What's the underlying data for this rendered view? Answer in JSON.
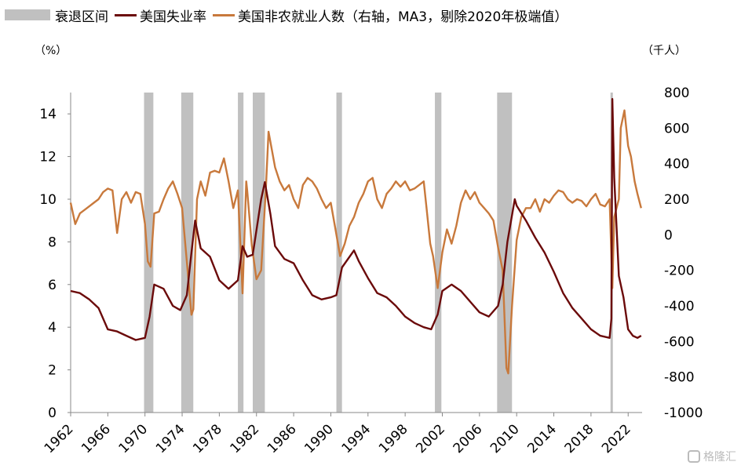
{
  "legend": {
    "recession": "衰退区间",
    "unemployment": "美国失业率",
    "payrolls": "美国非农就业人数（右轴，MA3，剔除2020年极端值）"
  },
  "units": {
    "left": "（%）",
    "right": "（千人）"
  },
  "watermark": "格隆汇",
  "colors": {
    "recession": "#c0c0c0",
    "unemployment": "#6b0a0a",
    "payrolls": "#c8793c"
  },
  "chart_data": {
    "type": "line",
    "x_range": [
      1962,
      2023.5
    ],
    "x_ticks": [
      "1962",
      "1966",
      "1970",
      "1974",
      "1978",
      "1982",
      "1986",
      "1990",
      "1994",
      "1998",
      "2002",
      "2006",
      "2010",
      "2014",
      "2018",
      "2022"
    ],
    "y_left": {
      "range": [
        0,
        15
      ],
      "ticks": [
        0,
        2,
        4,
        6,
        8,
        10,
        12,
        14
      ]
    },
    "y_right": {
      "range": [
        -1000,
        800
      ],
      "ticks": [
        -1000,
        -800,
        -600,
        -400,
        -200,
        0,
        200,
        400,
        600,
        800
      ]
    },
    "recessions": [
      [
        1969.9,
        1970.9
      ],
      [
        1973.9,
        1975.2
      ],
      [
        1980.0,
        1980.6
      ],
      [
        1981.6,
        1982.9
      ],
      [
        1990.6,
        1991.2
      ],
      [
        2001.2,
        2001.9
      ],
      [
        2007.9,
        2009.5
      ],
      [
        2020.1,
        2020.3
      ]
    ],
    "series": [
      {
        "name": "美国失业率",
        "axis": "left",
        "points": [
          [
            1962,
            5.7
          ],
          [
            1963,
            5.6
          ],
          [
            1964,
            5.3
          ],
          [
            1965,
            4.9
          ],
          [
            1966,
            3.9
          ],
          [
            1967,
            3.8
          ],
          [
            1968,
            3.6
          ],
          [
            1969,
            3.4
          ],
          [
            1970,
            3.5
          ],
          [
            1970.5,
            4.5
          ],
          [
            1971,
            6.0
          ],
          [
            1972,
            5.8
          ],
          [
            1973,
            5.0
          ],
          [
            1973.8,
            4.8
          ],
          [
            1974.5,
            5.5
          ],
          [
            1975,
            7.5
          ],
          [
            1975.4,
            9.0
          ],
          [
            1976,
            7.7
          ],
          [
            1977,
            7.3
          ],
          [
            1978,
            6.2
          ],
          [
            1979,
            5.8
          ],
          [
            1980,
            6.2
          ],
          [
            1980.5,
            7.8
          ],
          [
            1981,
            7.3
          ],
          [
            1981.6,
            7.4
          ],
          [
            1982.5,
            10.0
          ],
          [
            1982.9,
            10.8
          ],
          [
            1983.5,
            9.3
          ],
          [
            1984,
            7.8
          ],
          [
            1985,
            7.2
          ],
          [
            1986,
            7.0
          ],
          [
            1987,
            6.2
          ],
          [
            1988,
            5.5
          ],
          [
            1989,
            5.3
          ],
          [
            1990,
            5.4
          ],
          [
            1990.6,
            5.5
          ],
          [
            1991.2,
            6.8
          ],
          [
            1992.5,
            7.6
          ],
          [
            1993,
            7.1
          ],
          [
            1994,
            6.3
          ],
          [
            1995,
            5.6
          ],
          [
            1996,
            5.4
          ],
          [
            1997,
            5.0
          ],
          [
            1998,
            4.5
          ],
          [
            1999,
            4.2
          ],
          [
            2000,
            4.0
          ],
          [
            2000.8,
            3.9
          ],
          [
            2001.5,
            4.6
          ],
          [
            2002,
            5.7
          ],
          [
            2003,
            6.0
          ],
          [
            2004,
            5.7
          ],
          [
            2005,
            5.2
          ],
          [
            2006,
            4.7
          ],
          [
            2007,
            4.5
          ],
          [
            2008,
            5.0
          ],
          [
            2008.5,
            6.0
          ],
          [
            2009,
            8.0
          ],
          [
            2009.8,
            10.0
          ],
          [
            2010,
            9.7
          ],
          [
            2011,
            9.0
          ],
          [
            2012,
            8.2
          ],
          [
            2013,
            7.5
          ],
          [
            2014,
            6.6
          ],
          [
            2015,
            5.6
          ],
          [
            2016,
            4.9
          ],
          [
            2017,
            4.4
          ],
          [
            2018,
            3.9
          ],
          [
            2019,
            3.6
          ],
          [
            2020,
            3.5
          ],
          [
            2020.2,
            4.4
          ],
          [
            2020.3,
            14.7
          ],
          [
            2020.5,
            11.0
          ],
          [
            2021,
            6.4
          ],
          [
            2021.5,
            5.4
          ],
          [
            2022,
            3.9
          ],
          [
            2022.5,
            3.6
          ],
          [
            2023,
            3.5
          ],
          [
            2023.4,
            3.6
          ]
        ]
      },
      {
        "name": "美国非农就业人数（右轴，MA3，剔除2020年极端值）",
        "axis": "right",
        "points": [
          [
            1962,
            180
          ],
          [
            1962.5,
            60
          ],
          [
            1963,
            120
          ],
          [
            1963.5,
            140
          ],
          [
            1964,
            160
          ],
          [
            1964.5,
            180
          ],
          [
            1965,
            200
          ],
          [
            1965.5,
            240
          ],
          [
            1966,
            260
          ],
          [
            1966.5,
            250
          ],
          [
            1967,
            10
          ],
          [
            1967.5,
            200
          ],
          [
            1968,
            240
          ],
          [
            1968.5,
            180
          ],
          [
            1969,
            240
          ],
          [
            1969.5,
            230
          ],
          [
            1970,
            60
          ],
          [
            1970.3,
            -150
          ],
          [
            1970.6,
            -180
          ],
          [
            1971,
            120
          ],
          [
            1971.5,
            130
          ],
          [
            1972,
            200
          ],
          [
            1972.5,
            260
          ],
          [
            1973,
            300
          ],
          [
            1973.5,
            230
          ],
          [
            1974,
            150
          ],
          [
            1974.5,
            -150
          ],
          [
            1975,
            -450
          ],
          [
            1975.2,
            -420
          ],
          [
            1975.6,
            200
          ],
          [
            1976,
            300
          ],
          [
            1976.5,
            220
          ],
          [
            1977,
            350
          ],
          [
            1977.5,
            360
          ],
          [
            1978,
            350
          ],
          [
            1978.5,
            430
          ],
          [
            1979,
            300
          ],
          [
            1979.5,
            150
          ],
          [
            1980,
            250
          ],
          [
            1980.5,
            -330
          ],
          [
            1980.9,
            300
          ],
          [
            1981,
            250
          ],
          [
            1981.5,
            -60
          ],
          [
            1982,
            -250
          ],
          [
            1982.5,
            -200
          ],
          [
            1983,
            250
          ],
          [
            1983.3,
            580
          ],
          [
            1984,
            380
          ],
          [
            1984.5,
            300
          ],
          [
            1985,
            250
          ],
          [
            1985.5,
            280
          ],
          [
            1986,
            200
          ],
          [
            1986.5,
            150
          ],
          [
            1987,
            280
          ],
          [
            1987.5,
            320
          ],
          [
            1988,
            300
          ],
          [
            1988.5,
            260
          ],
          [
            1989,
            200
          ],
          [
            1989.5,
            150
          ],
          [
            1990,
            180
          ],
          [
            1990.5,
            30
          ],
          [
            1991,
            -120
          ],
          [
            1991.5,
            -50
          ],
          [
            1992,
            50
          ],
          [
            1992.5,
            100
          ],
          [
            1993,
            180
          ],
          [
            1993.5,
            230
          ],
          [
            1994,
            300
          ],
          [
            1994.5,
            320
          ],
          [
            1995,
            200
          ],
          [
            1995.5,
            150
          ],
          [
            1996,
            230
          ],
          [
            1996.5,
            260
          ],
          [
            1997,
            300
          ],
          [
            1997.5,
            270
          ],
          [
            1998,
            300
          ],
          [
            1998.5,
            250
          ],
          [
            1999,
            260
          ],
          [
            1999.5,
            280
          ],
          [
            2000,
            300
          ],
          [
            2000.3,
            150
          ],
          [
            2000.7,
            -50
          ],
          [
            2001,
            -120
          ],
          [
            2001.5,
            -300
          ],
          [
            2002,
            -100
          ],
          [
            2002.5,
            30
          ],
          [
            2003,
            -50
          ],
          [
            2003.5,
            50
          ],
          [
            2004,
            180
          ],
          [
            2004.5,
            250
          ],
          [
            2005,
            200
          ],
          [
            2005.5,
            240
          ],
          [
            2006,
            180
          ],
          [
            2006.5,
            150
          ],
          [
            2007,
            120
          ],
          [
            2007.5,
            80
          ],
          [
            2008,
            -70
          ],
          [
            2008.5,
            -200
          ],
          [
            2008.9,
            -750
          ],
          [
            2009.1,
            -780
          ],
          [
            2009.5,
            -400
          ],
          [
            2010,
            -30
          ],
          [
            2010.5,
            100
          ],
          [
            2011,
            150
          ],
          [
            2011.5,
            150
          ],
          [
            2012,
            200
          ],
          [
            2012.5,
            130
          ],
          [
            2013,
            200
          ],
          [
            2013.5,
            180
          ],
          [
            2014,
            220
          ],
          [
            2014.5,
            250
          ],
          [
            2015,
            240
          ],
          [
            2015.5,
            200
          ],
          [
            2016,
            180
          ],
          [
            2016.5,
            200
          ],
          [
            2017,
            190
          ],
          [
            2017.5,
            160
          ],
          [
            2018,
            200
          ],
          [
            2018.5,
            230
          ],
          [
            2019,
            170
          ],
          [
            2019.5,
            160
          ],
          [
            2020,
            200
          ],
          [
            2020.3,
            -300
          ],
          [
            2020.5,
            100
          ],
          [
            2021,
            200
          ],
          [
            2021.2,
            600
          ],
          [
            2021.6,
            700
          ],
          [
            2022,
            500
          ],
          [
            2022.3,
            440
          ],
          [
            2022.7,
            300
          ],
          [
            2023,
            230
          ],
          [
            2023.4,
            150
          ]
        ]
      }
    ]
  }
}
